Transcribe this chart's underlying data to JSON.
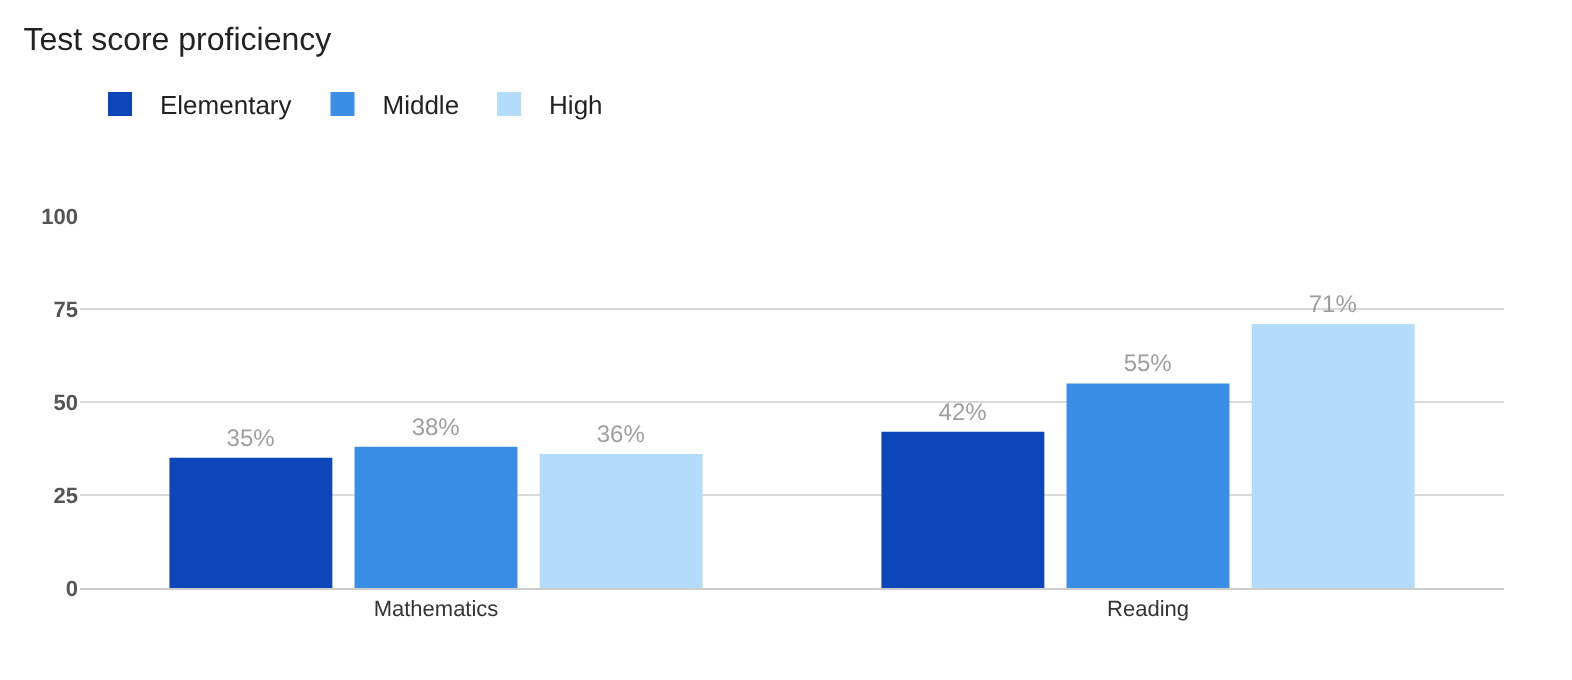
{
  "chart_data": {
    "type": "bar",
    "title": "Test score proficiency",
    "categories": [
      "Mathematics",
      "Reading"
    ],
    "series": [
      {
        "name": "Elementary",
        "color": "#0b47b8",
        "values": [
          35,
          42
        ],
        "value_labels": [
          "35%",
          "42%"
        ]
      },
      {
        "name": "Middle",
        "color": "#3a8ee6",
        "values": [
          38,
          55
        ],
        "value_labels": [
          "38%",
          "55%"
        ]
      },
      {
        "name": "High",
        "color": "#b3dbfa",
        "values": [
          36,
          71
        ],
        "value_labels": [
          "36%",
          "71%"
        ]
      }
    ],
    "ylim": [
      0,
      100
    ],
    "yticks": [
      0,
      25,
      50,
      75,
      100
    ],
    "grid": "y",
    "legend": "top left"
  }
}
